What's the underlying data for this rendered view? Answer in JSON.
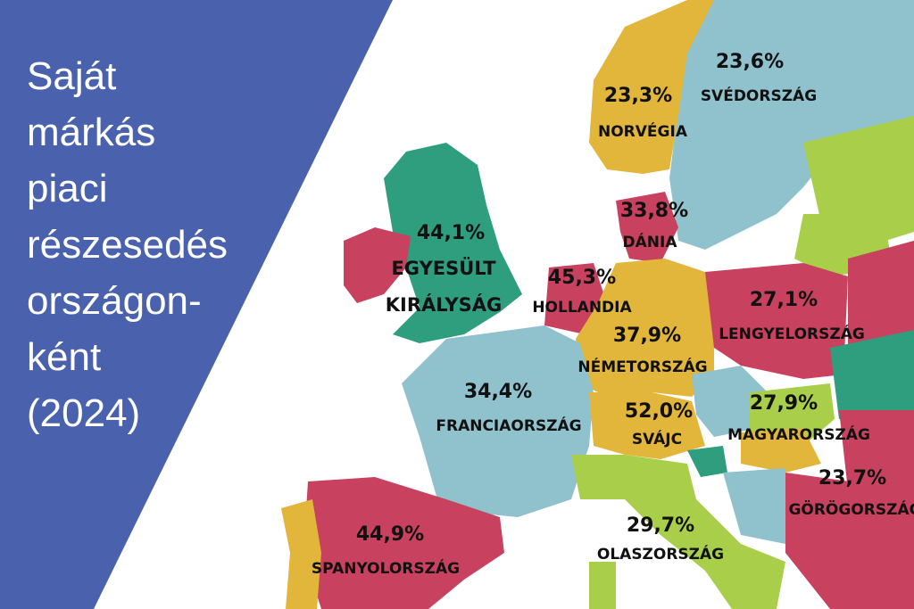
{
  "title_lines": [
    "Saját",
    "márkás",
    "piaci",
    "részesedés",
    "országon-",
    "ként",
    "(2024)"
  ],
  "countries": [
    {
      "name_lines": [
        "SVÉDORSZÁG"
      ],
      "share": "23,6%"
    },
    {
      "name_lines": [
        "NORVÉGIA"
      ],
      "share": "23,3%"
    },
    {
      "name_lines": [
        "EGYESÜLT",
        "KIRÁLYSÁG"
      ],
      "share": "44,1%"
    },
    {
      "name_lines": [
        "DÁNIA"
      ],
      "share": "33,8%"
    },
    {
      "name_lines": [
        "HOLLANDIA"
      ],
      "share": "45,3%"
    },
    {
      "name_lines": [
        "NÉMETORSZÁG"
      ],
      "share": "37,9%"
    },
    {
      "name_lines": [
        "LENGYELORSZÁG"
      ],
      "share": "27,1%"
    },
    {
      "name_lines": [
        "FRANCIAORSZÁG"
      ],
      "share": "34,4%"
    },
    {
      "name_lines": [
        "SVÁJC"
      ],
      "share": "52,0%"
    },
    {
      "name_lines": [
        "MAGYARORSZÁG"
      ],
      "share": "27,9%"
    },
    {
      "name_lines": [
        "GÖRÖGORSZÁG"
      ],
      "share": "23,7%"
    },
    {
      "name_lines": [
        "SPANYOLORSZÁG"
      ],
      "share": "44,9%"
    },
    {
      "name_lines": [
        "OLASZORSZÁG"
      ],
      "share": "29,7%"
    }
  ]
}
